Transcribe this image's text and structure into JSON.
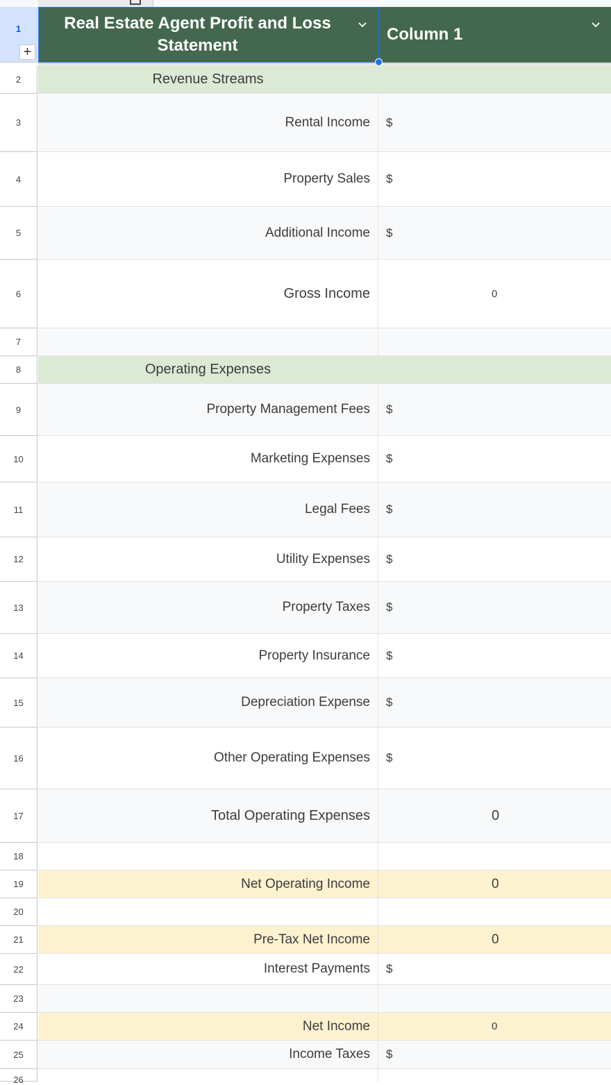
{
  "header": {
    "col_a_title": "Real Estate Agent Profit and Loss Statement",
    "col_b_title": "Column 1",
    "accent": "#44684f"
  },
  "rows": [
    {
      "num": "1"
    },
    {
      "num": "2",
      "label": "Revenue Streams",
      "value": ""
    },
    {
      "num": "3",
      "label": "Rental Income",
      "value": "$"
    },
    {
      "num": "4",
      "label": "Property Sales",
      "value": "$"
    },
    {
      "num": "5",
      "label": "Additional Income",
      "value": "$"
    },
    {
      "num": "6",
      "label": "Gross Income",
      "value": "0"
    },
    {
      "num": "7",
      "label": "",
      "value": ""
    },
    {
      "num": "8",
      "label": "Operating Expenses",
      "value": ""
    },
    {
      "num": "9",
      "label": "Property Management Fees",
      "value": "$"
    },
    {
      "num": "10",
      "label": "Marketing Expenses",
      "value": "$"
    },
    {
      "num": "11",
      "label": "Legal Fees",
      "value": "$"
    },
    {
      "num": "12",
      "label": "Utility Expenses",
      "value": "$"
    },
    {
      "num": "13",
      "label": "Property Taxes",
      "value": "$"
    },
    {
      "num": "14",
      "label": "Property Insurance",
      "value": "$"
    },
    {
      "num": "15",
      "label": "Depreciation Expense",
      "value": "$"
    },
    {
      "num": "16",
      "label": "Other Operating Expenses",
      "value": "$"
    },
    {
      "num": "17",
      "label": "Total Operating Expenses",
      "value": "0"
    },
    {
      "num": "18",
      "label": "",
      "value": ""
    },
    {
      "num": "19",
      "label": "Net Operating Income",
      "value": "0"
    },
    {
      "num": "20",
      "label": "",
      "value": ""
    },
    {
      "num": "21",
      "label": "Pre-Tax Net Income",
      "value": "0"
    },
    {
      "num": "22",
      "label": "Interest Payments",
      "value": "$"
    },
    {
      "num": "23",
      "label": "",
      "value": ""
    },
    {
      "num": "24",
      "label": "Net Income",
      "value": "0"
    },
    {
      "num": "25",
      "label": "Income Taxes",
      "value": "$"
    },
    {
      "num": "26",
      "label": "",
      "value": ""
    }
  ],
  "colors": {
    "section_fill": "#dce9d5",
    "highlight_fill": "#fdf2d0",
    "selection": "#1a73e8"
  }
}
